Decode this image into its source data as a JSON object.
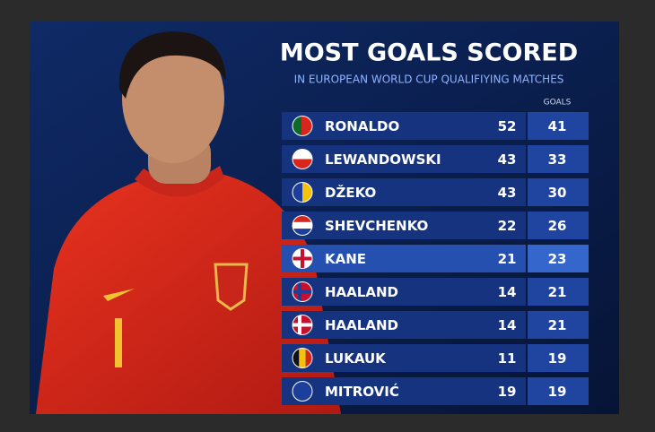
{
  "header": {
    "title": "MOST GOALS SCORED",
    "subtitle": "IN EUROPEAN WORLD CUP QUALIFIYING MATCHES"
  },
  "table": {
    "columns": [
      "GOALS"
    ],
    "rows": [
      [
        "RONALDO",
        52,
        41
      ],
      [
        "LEWANDOWSKI",
        43,
        33
      ],
      [
        "DŽEKO",
        43,
        30
      ],
      [
        "SHEVCHENKO",
        22,
        26
      ],
      [
        "KANE",
        21,
        23
      ],
      [
        "HAALAND",
        14,
        21
      ],
      [
        "HAALAND",
        14,
        21
      ],
      [
        "LUKAUK",
        11,
        19
      ],
      [
        "MITROVIĆ",
        19,
        19
      ]
    ]
  }
}
